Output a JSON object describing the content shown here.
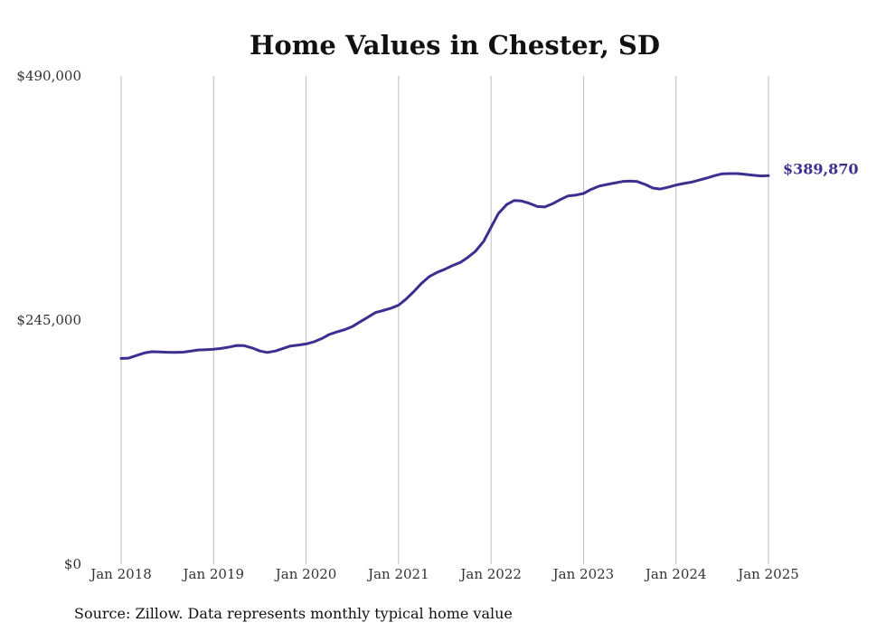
{
  "chart_data": {
    "type": "line",
    "title": "Home Values in Chester, SD",
    "xlabel": "",
    "ylabel": "",
    "ylim": [
      0,
      490000
    ],
    "yticks": [
      {
        "value": 0,
        "label": "$0"
      },
      {
        "value": 245000,
        "label": "$245,000"
      },
      {
        "value": 490000,
        "label": "$490,000"
      }
    ],
    "xticks": [
      {
        "value": 2018.0,
        "label": "Jan 2018"
      },
      {
        "value": 2019.0,
        "label": "Jan 2019"
      },
      {
        "value": 2020.0,
        "label": "Jan 2020"
      },
      {
        "value": 2021.0,
        "label": "Jan 2021"
      },
      {
        "value": 2022.0,
        "label": "Jan 2022"
      },
      {
        "value": 2023.0,
        "label": "Jan 2023"
      },
      {
        "value": 2024.0,
        "label": "Jan 2024"
      },
      {
        "value": 2025.0,
        "label": "Jan 2025"
      }
    ],
    "grid": "vertical",
    "series": [
      {
        "color": "#3b2f8f",
        "end_label": "$389,870",
        "points": [
          [
            2018.0,
            206500
          ],
          [
            2018.08,
            206800
          ],
          [
            2018.17,
            209500
          ],
          [
            2018.25,
            212000
          ],
          [
            2018.33,
            213200
          ],
          [
            2018.42,
            213000
          ],
          [
            2018.5,
            212700
          ],
          [
            2018.58,
            212500
          ],
          [
            2018.67,
            212800
          ],
          [
            2018.75,
            213800
          ],
          [
            2018.83,
            215000
          ],
          [
            2018.92,
            215300
          ],
          [
            2019.0,
            215800
          ],
          [
            2019.08,
            216500
          ],
          [
            2019.17,
            218000
          ],
          [
            2019.25,
            219500
          ],
          [
            2019.33,
            219300
          ],
          [
            2019.42,
            217000
          ],
          [
            2019.5,
            214000
          ],
          [
            2019.58,
            212500
          ],
          [
            2019.67,
            214000
          ],
          [
            2019.75,
            216500
          ],
          [
            2019.83,
            219000
          ],
          [
            2019.92,
            220000
          ],
          [
            2020.0,
            221000
          ],
          [
            2020.08,
            223000
          ],
          [
            2020.17,
            226500
          ],
          [
            2020.25,
            230500
          ],
          [
            2020.33,
            233000
          ],
          [
            2020.42,
            235500
          ],
          [
            2020.5,
            238500
          ],
          [
            2020.58,
            243000
          ],
          [
            2020.67,
            248000
          ],
          [
            2020.75,
            252500
          ],
          [
            2020.83,
            254500
          ],
          [
            2020.92,
            257000
          ],
          [
            2021.0,
            260000
          ],
          [
            2021.08,
            266000
          ],
          [
            2021.17,
            274000
          ],
          [
            2021.25,
            282000
          ],
          [
            2021.33,
            288500
          ],
          [
            2021.42,
            293000
          ],
          [
            2021.5,
            296000
          ],
          [
            2021.58,
            299500
          ],
          [
            2021.67,
            303000
          ],
          [
            2021.75,
            308000
          ],
          [
            2021.83,
            314000
          ],
          [
            2021.92,
            324000
          ],
          [
            2022.0,
            338000
          ],
          [
            2022.08,
            352000
          ],
          [
            2022.17,
            361000
          ],
          [
            2022.25,
            365000
          ],
          [
            2022.33,
            364500
          ],
          [
            2022.42,
            362000
          ],
          [
            2022.5,
            359000
          ],
          [
            2022.58,
            358500
          ],
          [
            2022.67,
            362000
          ],
          [
            2022.75,
            366000
          ],
          [
            2022.83,
            369500
          ],
          [
            2022.92,
            370500
          ],
          [
            2023.0,
            372000
          ],
          [
            2023.08,
            376000
          ],
          [
            2023.17,
            379500
          ],
          [
            2023.25,
            381000
          ],
          [
            2023.33,
            382500
          ],
          [
            2023.42,
            384000
          ],
          [
            2023.5,
            384500
          ],
          [
            2023.58,
            384000
          ],
          [
            2023.67,
            381000
          ],
          [
            2023.75,
            377500
          ],
          [
            2023.83,
            376500
          ],
          [
            2023.92,
            378500
          ],
          [
            2024.0,
            380500
          ],
          [
            2024.08,
            382000
          ],
          [
            2024.17,
            383500
          ],
          [
            2024.25,
            385500
          ],
          [
            2024.33,
            387500
          ],
          [
            2024.42,
            390000
          ],
          [
            2024.5,
            391800
          ],
          [
            2024.58,
            392000
          ],
          [
            2024.67,
            392000
          ],
          [
            2024.75,
            391200
          ],
          [
            2024.83,
            390500
          ],
          [
            2024.92,
            389600
          ],
          [
            2025.0,
            389870
          ]
        ]
      }
    ]
  },
  "footer": {
    "source": "Source: Zillow. Data represents monthly typical home value"
  }
}
